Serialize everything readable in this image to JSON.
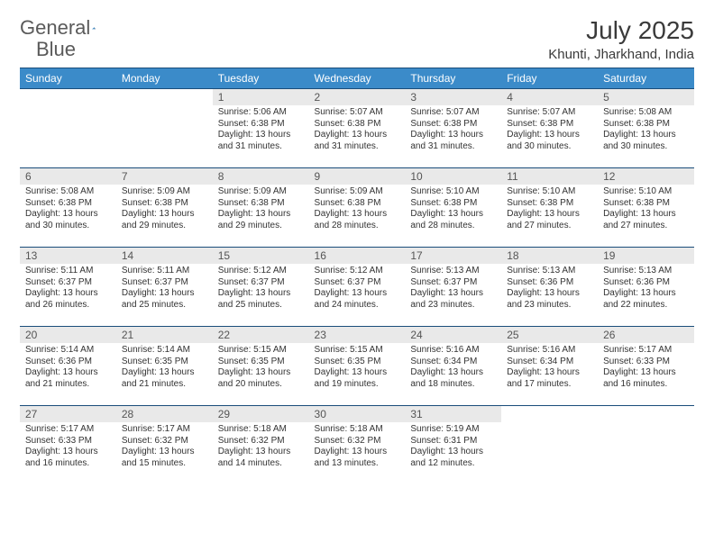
{
  "brand": {
    "name_left": "General",
    "name_right": "Blue",
    "text_color": "#5a5a5a",
    "logo_color": "#3b8bc9"
  },
  "title": "July 2025",
  "location": "Khunti, Jharkhand, India",
  "colors": {
    "header_bg": "#3b8bc9",
    "header_text": "#ffffff",
    "row_border": "#1a4d7a",
    "daynum_bg": "#e9e9e9",
    "daynum_text": "#555555",
    "body_text": "#333333",
    "page_bg": "#ffffff"
  },
  "typography": {
    "title_fontsize": 28,
    "location_fontsize": 15,
    "dayheader_fontsize": 12,
    "daynum_fontsize": 12,
    "cell_fontsize": 10
  },
  "layout": {
    "rows": 5,
    "cols": 7,
    "first_weekday": "Sunday",
    "first_day_col": 2,
    "days_in_month": 31
  },
  "day_headers": [
    "Sunday",
    "Monday",
    "Tuesday",
    "Wednesday",
    "Thursday",
    "Friday",
    "Saturday"
  ],
  "labels": {
    "sunrise": "Sunrise:",
    "sunset": "Sunset:",
    "daylight_prefix": "Daylight:",
    "daylight_unit_h": "hours",
    "daylight_joiner": "and",
    "daylight_unit_m": "minutes."
  },
  "days": [
    {
      "n": 1,
      "sunrise": "5:06 AM",
      "sunset": "6:38 PM",
      "dl_h": 13,
      "dl_m": 31
    },
    {
      "n": 2,
      "sunrise": "5:07 AM",
      "sunset": "6:38 PM",
      "dl_h": 13,
      "dl_m": 31
    },
    {
      "n": 3,
      "sunrise": "5:07 AM",
      "sunset": "6:38 PM",
      "dl_h": 13,
      "dl_m": 31
    },
    {
      "n": 4,
      "sunrise": "5:07 AM",
      "sunset": "6:38 PM",
      "dl_h": 13,
      "dl_m": 30
    },
    {
      "n": 5,
      "sunrise": "5:08 AM",
      "sunset": "6:38 PM",
      "dl_h": 13,
      "dl_m": 30
    },
    {
      "n": 6,
      "sunrise": "5:08 AM",
      "sunset": "6:38 PM",
      "dl_h": 13,
      "dl_m": 30
    },
    {
      "n": 7,
      "sunrise": "5:09 AM",
      "sunset": "6:38 PM",
      "dl_h": 13,
      "dl_m": 29
    },
    {
      "n": 8,
      "sunrise": "5:09 AM",
      "sunset": "6:38 PM",
      "dl_h": 13,
      "dl_m": 29
    },
    {
      "n": 9,
      "sunrise": "5:09 AM",
      "sunset": "6:38 PM",
      "dl_h": 13,
      "dl_m": 28
    },
    {
      "n": 10,
      "sunrise": "5:10 AM",
      "sunset": "6:38 PM",
      "dl_h": 13,
      "dl_m": 28
    },
    {
      "n": 11,
      "sunrise": "5:10 AM",
      "sunset": "6:38 PM",
      "dl_h": 13,
      "dl_m": 27
    },
    {
      "n": 12,
      "sunrise": "5:10 AM",
      "sunset": "6:38 PM",
      "dl_h": 13,
      "dl_m": 27
    },
    {
      "n": 13,
      "sunrise": "5:11 AM",
      "sunset": "6:37 PM",
      "dl_h": 13,
      "dl_m": 26
    },
    {
      "n": 14,
      "sunrise": "5:11 AM",
      "sunset": "6:37 PM",
      "dl_h": 13,
      "dl_m": 25
    },
    {
      "n": 15,
      "sunrise": "5:12 AM",
      "sunset": "6:37 PM",
      "dl_h": 13,
      "dl_m": 25
    },
    {
      "n": 16,
      "sunrise": "5:12 AM",
      "sunset": "6:37 PM",
      "dl_h": 13,
      "dl_m": 24
    },
    {
      "n": 17,
      "sunrise": "5:13 AM",
      "sunset": "6:37 PM",
      "dl_h": 13,
      "dl_m": 23
    },
    {
      "n": 18,
      "sunrise": "5:13 AM",
      "sunset": "6:36 PM",
      "dl_h": 13,
      "dl_m": 23
    },
    {
      "n": 19,
      "sunrise": "5:13 AM",
      "sunset": "6:36 PM",
      "dl_h": 13,
      "dl_m": 22
    },
    {
      "n": 20,
      "sunrise": "5:14 AM",
      "sunset": "6:36 PM",
      "dl_h": 13,
      "dl_m": 21
    },
    {
      "n": 21,
      "sunrise": "5:14 AM",
      "sunset": "6:35 PM",
      "dl_h": 13,
      "dl_m": 21
    },
    {
      "n": 22,
      "sunrise": "5:15 AM",
      "sunset": "6:35 PM",
      "dl_h": 13,
      "dl_m": 20
    },
    {
      "n": 23,
      "sunrise": "5:15 AM",
      "sunset": "6:35 PM",
      "dl_h": 13,
      "dl_m": 19
    },
    {
      "n": 24,
      "sunrise": "5:16 AM",
      "sunset": "6:34 PM",
      "dl_h": 13,
      "dl_m": 18
    },
    {
      "n": 25,
      "sunrise": "5:16 AM",
      "sunset": "6:34 PM",
      "dl_h": 13,
      "dl_m": 17
    },
    {
      "n": 26,
      "sunrise": "5:17 AM",
      "sunset": "6:33 PM",
      "dl_h": 13,
      "dl_m": 16
    },
    {
      "n": 27,
      "sunrise": "5:17 AM",
      "sunset": "6:33 PM",
      "dl_h": 13,
      "dl_m": 16
    },
    {
      "n": 28,
      "sunrise": "5:17 AM",
      "sunset": "6:32 PM",
      "dl_h": 13,
      "dl_m": 15
    },
    {
      "n": 29,
      "sunrise": "5:18 AM",
      "sunset": "6:32 PM",
      "dl_h": 13,
      "dl_m": 14
    },
    {
      "n": 30,
      "sunrise": "5:18 AM",
      "sunset": "6:32 PM",
      "dl_h": 13,
      "dl_m": 13
    },
    {
      "n": 31,
      "sunrise": "5:19 AM",
      "sunset": "6:31 PM",
      "dl_h": 13,
      "dl_m": 12
    }
  ]
}
